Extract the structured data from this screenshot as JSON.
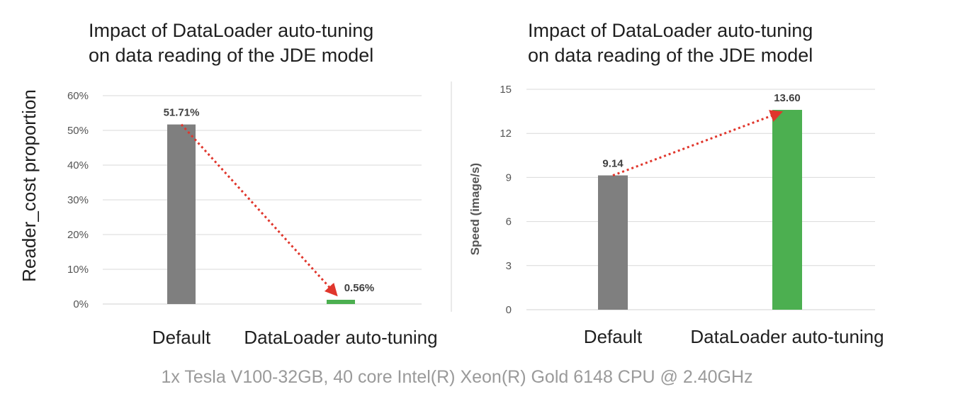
{
  "colors": {
    "bar_default": "#7f7f7f",
    "bar_tuned": "#4caf50",
    "trend_arrow": "#e0362c"
  },
  "footnote": "1x Tesla V100-32GB, 40 core Intel(R) Xeon(R) Gold 6148 CPU @ 2.40GHz",
  "chart_data": [
    {
      "type": "bar",
      "title": [
        "Impact of DataLoader auto-tuning",
        "on data reading of the JDE model"
      ],
      "ylabel": "Reader_cost proportion",
      "xlabel": "",
      "categories": [
        "Default",
        "DataLoader auto-tuning"
      ],
      "values": [
        51.71,
        0.56
      ],
      "value_labels": [
        "51.71%",
        "0.56%"
      ],
      "ylim": [
        0,
        60
      ],
      "yticks": [
        0,
        10,
        20,
        30,
        40,
        50,
        60
      ],
      "ytick_labels": [
        "0%",
        "10%",
        "20%",
        "30%",
        "40%",
        "50%",
        "60%"
      ],
      "grid": true,
      "annotation": "dotted arrow from Default to DataLoader auto-tuning"
    },
    {
      "type": "bar",
      "title": [
        "Impact of DataLoader auto-tuning",
        "on data reading of the JDE model"
      ],
      "ylabel": "Speed (image/s)",
      "xlabel": "",
      "categories": [
        "Default",
        "DataLoader auto-tuning"
      ],
      "values": [
        9.14,
        13.6
      ],
      "value_labels": [
        "9.14",
        "13.60"
      ],
      "ylim": [
        0,
        15
      ],
      "yticks": [
        0,
        3,
        6,
        9,
        12,
        15
      ],
      "ytick_labels": [
        "0",
        "3",
        "6",
        "9",
        "12",
        "15"
      ],
      "grid": true,
      "annotation": "dotted arrow from Default to DataLoader auto-tuning"
    }
  ]
}
